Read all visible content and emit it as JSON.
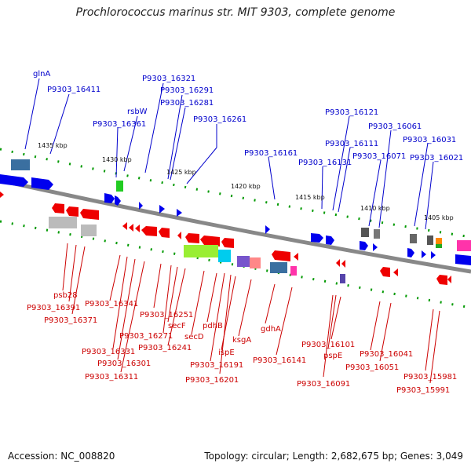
{
  "title": "Prochlorococcus marinus str. MIT 9303, complete genome",
  "footer": {
    "accession": "Accession: NC_008820",
    "summary": "Topology: circular; Length: 2,682,675 bp; Genes: 3,049"
  },
  "kbp_ticks": [
    "1435 kbp",
    "1430 kbp",
    "1425 kbp",
    "1420 kbp",
    "1415 kbp",
    "1410 kbp",
    "1405 kbp"
  ],
  "top_labels": [
    "glnA",
    "P9303_16411",
    "P9303_16321",
    "P9303_16291",
    "rsbW",
    "P9303_16281",
    "P9303_16361",
    "P9303_16261",
    "P9303_16121",
    "P9303_16061",
    "P9303_16111",
    "P9303_16031",
    "P9303_16161",
    "P9303_16071",
    "P9303_16131",
    "P9303_16021"
  ],
  "bottom_labels": [
    "psb28",
    "P9303_16391",
    "P9303_16371",
    "P9303_16341",
    "P9303_16251",
    "secF",
    "P9303_16271",
    "pdhB",
    "P9303_16241",
    "secD",
    "ksgA",
    "gdhA",
    "P9303_16331",
    "P9303_16301",
    "P9303_16311",
    "ispE",
    "P9303_16191",
    "P9303_16201",
    "P9303_16141",
    "P9303_16101",
    "pspE",
    "P9303_16091",
    "P9303_16041",
    "P9303_16051",
    "P9303_15981",
    "P9303_15991"
  ],
  "colors": {
    "forward_gene": "#0000ee",
    "reverse_gene": "#ee0000",
    "backbone": "#888888",
    "tick": "#009900",
    "top_label": "#0000cc",
    "bottom_label": "#cc0000"
  }
}
